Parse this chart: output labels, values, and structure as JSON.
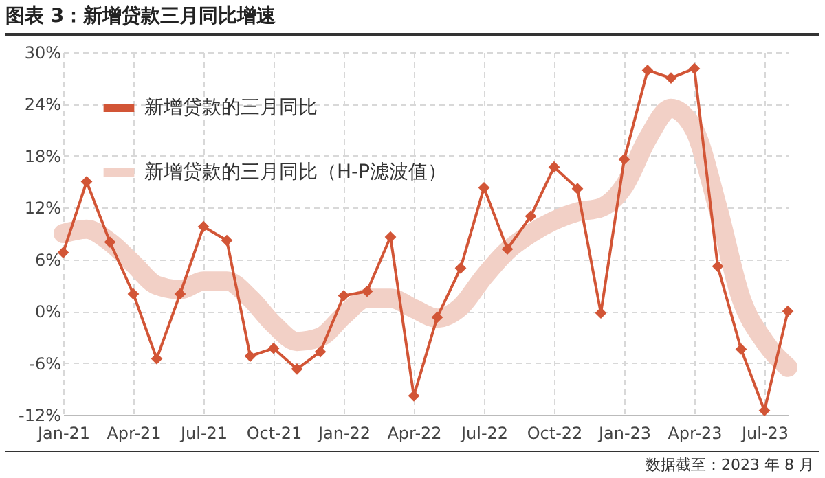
{
  "chart_data": {
    "type": "line",
    "title": "图表 3：新增贷款三月同比增速",
    "categories": [
      "Jan-21",
      null,
      null,
      "Apr-21",
      null,
      null,
      "Jul-21",
      null,
      null,
      "Oct-21",
      null,
      null,
      "Jan-22",
      null,
      null,
      "Apr-22",
      null,
      null,
      "Jul-22",
      null,
      null,
      "Oct-22",
      null,
      null,
      "Jan-23",
      null,
      null,
      "Apr-23",
      null,
      null,
      "Jul-23",
      null
    ],
    "series": [
      {
        "name": "新增贷款的三月同比",
        "color": "#d25536",
        "marker": "diamond",
        "values": [
          6.8,
          15,
          8,
          2,
          -5.5,
          2,
          9.8,
          8.2,
          -5.2,
          -4.3,
          -6.7,
          -4.7,
          1.8,
          2.3,
          8.6,
          -9.8,
          -0.7,
          5,
          14.3,
          7.2,
          11,
          16.7,
          14.2,
          -0.2,
          17.6,
          27.9,
          27,
          28.1,
          5.2,
          -4.4,
          -11.5,
          0
        ]
      },
      {
        "name": "新增贷款的三月同比（H-P滤波值）",
        "color": "#f2d0c6",
        "marker": "none",
        "values": [
          9,
          9.5,
          8,
          5.5,
          3,
          2.5,
          3.5,
          3.5,
          1.5,
          -1.5,
          -3.5,
          -3,
          -0.5,
          1.5,
          1.5,
          0.3,
          -0.8,
          0.5,
          4,
          7,
          9,
          10.5,
          11.5,
          12,
          14.5,
          20,
          23.5,
          21,
          12,
          1.5,
          -3.5,
          -6.5
        ]
      }
    ],
    "ylim": [
      -12,
      30
    ],
    "yticks": [
      {
        "value": -12,
        "label": "-12%"
      },
      {
        "value": -6,
        "label": "-6%"
      },
      {
        "value": 0,
        "label": "0%"
      },
      {
        "value": 6,
        "label": "6%"
      },
      {
        "value": 12,
        "label": "12%"
      },
      {
        "value": 18,
        "label": "18%"
      },
      {
        "value": 24,
        "label": "24%"
      },
      {
        "value": 30,
        "label": "30%"
      }
    ],
    "grid": true,
    "legend": "top left",
    "line_style": "solid",
    "annotations": [
      "数据截至：2023 年 8 月"
    ]
  }
}
